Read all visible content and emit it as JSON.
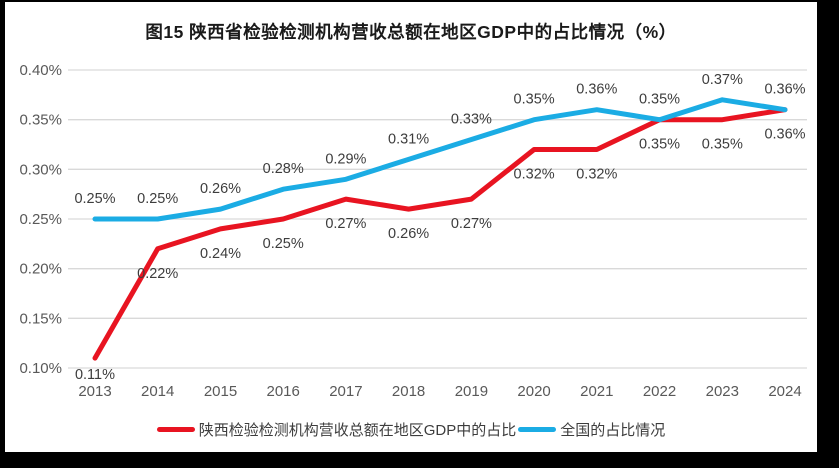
{
  "title": "图15 陕西省检验检测机构营收总额在地区GDP中的占比情况（%）",
  "chart_data": {
    "type": "line",
    "title": "图15 陕西省检验检测机构营收总额在地区GDP中的占比情况（%）",
    "categories": [
      "2013",
      "2014",
      "2015",
      "2016",
      "2017",
      "2018",
      "2019",
      "2020",
      "2021",
      "2022",
      "2023",
      "2024"
    ],
    "series": [
      {
        "name": "陕西检验检测机构营收总额在地区GDP中的占比",
        "color": "#E81421",
        "values": [
          0.11,
          0.22,
          0.24,
          0.25,
          0.27,
          0.26,
          0.27,
          0.32,
          0.32,
          0.35,
          0.35,
          0.36
        ],
        "value_labels": [
          "0.11%",
          "0.22%",
          "0.24%",
          "0.25%",
          "0.27%",
          "0.26%",
          "0.27%",
          "0.32%",
          "0.32%",
          "0.35%",
          "0.35%",
          "0.36%"
        ]
      },
      {
        "name": "全国的占比情况",
        "color": "#1BACE4",
        "values": [
          0.25,
          0.25,
          0.26,
          0.28,
          0.29,
          0.31,
          0.33,
          0.35,
          0.36,
          0.35,
          0.37,
          0.36
        ],
        "value_labels": [
          "0.25%",
          "0.25%",
          "0.26%",
          "0.28%",
          "0.29%",
          "0.31%",
          "0.33%",
          "0.35%",
          "0.36%",
          "0.35%",
          "0.37%",
          "0.36%"
        ]
      }
    ],
    "xlabel": "",
    "ylabel": "",
    "ylim": [
      0.1,
      0.4
    ],
    "ytick_step": 0.05,
    "ytick_labels": [
      "0.10%",
      "0.15%",
      "0.20%",
      "0.25%",
      "0.30%",
      "0.35%",
      "0.40%"
    ],
    "grid": "horizontal",
    "gridline_color": "#D9D9D9",
    "legend_position": "bottom"
  }
}
